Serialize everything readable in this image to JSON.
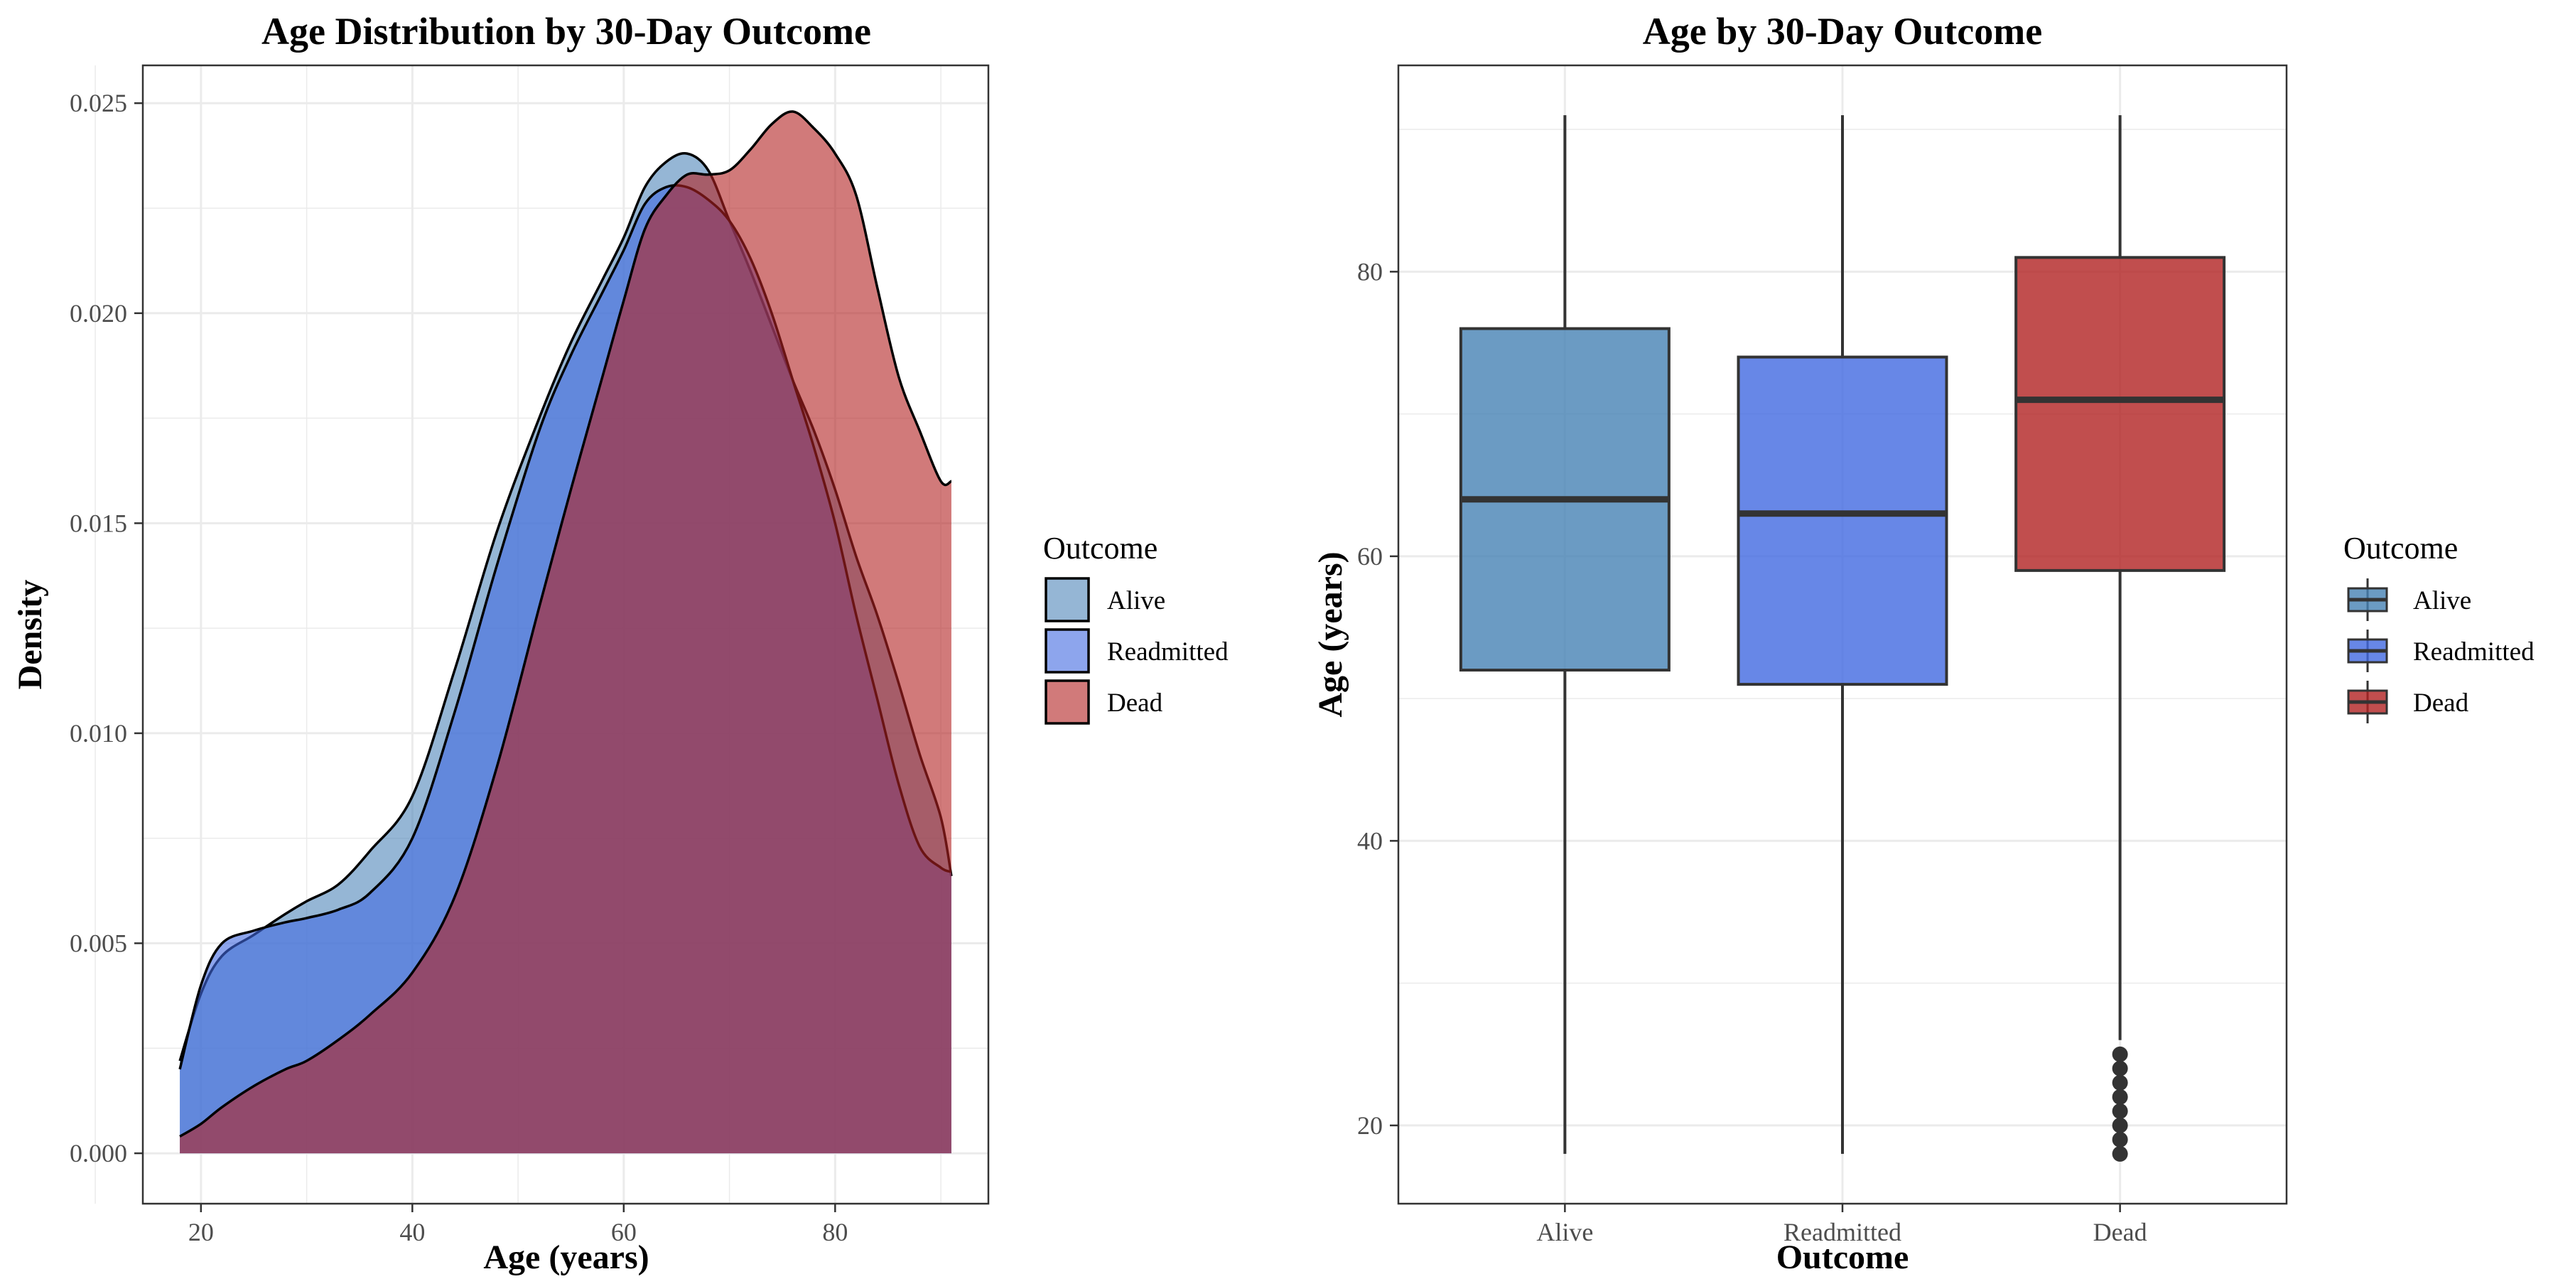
{
  "chart_data": [
    {
      "type": "area",
      "title": "Age Distribution by 30-Day Outcome",
      "xlabel": "Age (years)",
      "ylabel": "Density",
      "xlim": [
        14.5,
        94.5
      ],
      "ylim": [
        -0.0012,
        0.0259
      ],
      "x_ticks": [
        20,
        40,
        60,
        80
      ],
      "x_tick_labels": [
        "20",
        "40",
        "60",
        "80"
      ],
      "y_ticks": [
        0,
        0.005,
        0.01,
        0.015,
        0.02,
        0.025
      ],
      "y_tick_labels": [
        "0.000",
        "0.005",
        "0.010",
        "0.015",
        "0.020",
        "0.025"
      ],
      "grid": true,
      "legend": {
        "title": "Outcome",
        "position": "right",
        "entries": [
          "Alive",
          "Readmitted",
          "Dead"
        ]
      },
      "x": [
        18,
        20,
        22,
        25,
        28,
        30,
        33,
        36,
        40,
        44,
        48,
        52,
        55,
        58,
        60,
        62,
        64,
        66,
        68,
        70,
        72,
        74,
        76,
        78,
        80,
        82,
        84,
        86,
        88,
        90,
        91
      ],
      "series": [
        {
          "name": "Alive",
          "color": "#4f85b9",
          "values": [
            0.0022,
            0.0038,
            0.0047,
            0.0052,
            0.0057,
            0.006,
            0.0064,
            0.0072,
            0.0085,
            0.0115,
            0.0148,
            0.0175,
            0.0193,
            0.0208,
            0.0218,
            0.023,
            0.0236,
            0.0238,
            0.0234,
            0.0222,
            0.021,
            0.0197,
            0.0184,
            0.0172,
            0.0158,
            0.0142,
            0.0128,
            0.0112,
            0.0095,
            0.008,
            0.0066
          ]
        },
        {
          "name": "Readmitted",
          "color": "#4169e1",
          "values": [
            0.002,
            0.004,
            0.005,
            0.0053,
            0.0055,
            0.0056,
            0.0058,
            0.0062,
            0.0075,
            0.0105,
            0.014,
            0.0172,
            0.019,
            0.0205,
            0.0215,
            0.0226,
            0.023,
            0.023,
            0.0227,
            0.0222,
            0.0213,
            0.02,
            0.0184,
            0.0168,
            0.015,
            0.0128,
            0.0108,
            0.0088,
            0.0073,
            0.0068,
            0.0067
          ]
        },
        {
          "name": "Dead",
          "color": "#b22222",
          "values": [
            0.0004,
            0.0007,
            0.0011,
            0.0016,
            0.002,
            0.0022,
            0.0027,
            0.0033,
            0.0043,
            0.0061,
            0.0092,
            0.013,
            0.0158,
            0.0185,
            0.0203,
            0.022,
            0.0228,
            0.0233,
            0.0233,
            0.0234,
            0.0239,
            0.0245,
            0.0248,
            0.0244,
            0.0238,
            0.0228,
            0.0206,
            0.0185,
            0.0172,
            0.016,
            0.016
          ]
        }
      ]
    },
    {
      "type": "box",
      "title": "Age by 30-Day Outcome",
      "xlabel": "Outcome",
      "ylabel": "Age (years)",
      "categories": [
        "Alive",
        "Readmitted",
        "Dead"
      ],
      "ylim": [
        14.5,
        94.5
      ],
      "y_ticks": [
        20,
        40,
        60,
        80
      ],
      "y_tick_labels": [
        "20",
        "40",
        "60",
        "80"
      ],
      "grid": true,
      "legend": {
        "title": "Outcome",
        "position": "right",
        "entries": [
          "Alive",
          "Readmitted",
          "Dead"
        ]
      },
      "series": [
        {
          "name": "Alive",
          "color": "#4682b4",
          "min": 18,
          "q1": 52,
          "median": 64,
          "q3": 76,
          "max": 91,
          "outliers": []
        },
        {
          "name": "Readmitted",
          "color": "#4169e1",
          "min": 18,
          "q1": 51,
          "median": 63,
          "q3": 74,
          "max": 91,
          "outliers": []
        },
        {
          "name": "Dead",
          "color": "#b22222",
          "min": 26,
          "q1": 59,
          "median": 71,
          "q3": 81,
          "max": 91,
          "outliers": [
            18,
            19,
            20,
            21,
            22,
            23,
            24,
            25
          ]
        }
      ]
    }
  ]
}
